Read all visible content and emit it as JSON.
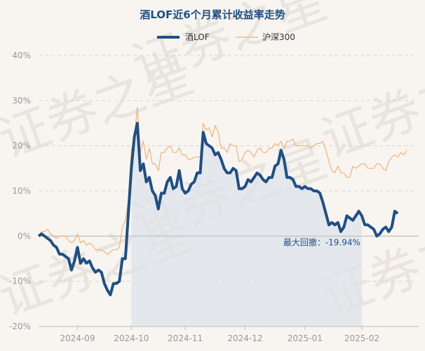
{
  "chart_data": {
    "type": "line",
    "title": "酒LOF近6个月累计收益率走势",
    "legend_position": "top",
    "watermark": "证券之星",
    "colors": {
      "lof": "#1f4f86",
      "hs300": "#f0b27a",
      "drawdown_fill": "#dde3ea"
    },
    "y_ticks": [
      "40%",
      "30%",
      "20%",
      "10%",
      "0%",
      "-10%",
      "-20%"
    ],
    "y_tick_values": [
      40,
      30,
      20,
      10,
      0,
      -10,
      -20
    ],
    "ylim": [
      -20,
      40
    ],
    "x_ticks": [
      "2024-09",
      "2024-10",
      "2024-11",
      "2024-12",
      "2025-01",
      "2025-02"
    ],
    "xlim": [
      0,
      127
    ],
    "x_tick_positions": [
      13,
      31,
      49,
      69,
      89,
      108
    ],
    "drawdown_range": [
      31,
      108
    ],
    "annotation": {
      "text": "最大回撤：-19.94%",
      "x": 108,
      "y": 0
    },
    "series": [
      {
        "name": "酒LOF",
        "values": [
          0,
          0.5,
          0,
          -0.5,
          -1,
          -2,
          -2.5,
          -4,
          -4,
          -4.5,
          -5,
          -7.5,
          -5.5,
          -2.5,
          -6,
          -5,
          -6,
          -5.5,
          -7,
          -8,
          -7.5,
          -8,
          -10.5,
          -12,
          -13,
          -10.5,
          -10.5,
          -10,
          -5,
          -5,
          5,
          15,
          22,
          25,
          14.5,
          16,
          12,
          13,
          10,
          9,
          6,
          9.5,
          9.5,
          12,
          13,
          10.5,
          11,
          14.5,
          10.5,
          9.5,
          10,
          11.5,
          12,
          14,
          14,
          23,
          20.5,
          20,
          19.5,
          18,
          18.5,
          17,
          15,
          14,
          14,
          15,
          14.5,
          10.5,
          10.5,
          11,
          12.5,
          12,
          13,
          14,
          13.5,
          12.5,
          12,
          13,
          13,
          15.5,
          16,
          19,
          17,
          13,
          13,
          12.5,
          11,
          11,
          10.5,
          11,
          10.5,
          10.5,
          10,
          10,
          9.5,
          7.5,
          5,
          2.5,
          3,
          2.5,
          3,
          1,
          2,
          4.5,
          4,
          3.5,
          4.5,
          5.5,
          4.5,
          2.5,
          2.5,
          2,
          1.5,
          0,
          0.5,
          1.5,
          2,
          1,
          2,
          5.5,
          5
        ]
      },
      {
        "name": "沪深300",
        "values": [
          0,
          1,
          1,
          1.5,
          0.5,
          0,
          -0.5,
          0,
          0,
          0,
          -1,
          -1.5,
          -1,
          0.5,
          -1.5,
          -1,
          -2,
          -1.5,
          -2,
          -3,
          -3,
          -3,
          -3.5,
          -4,
          -3.5,
          -3,
          -3,
          -2.5,
          2,
          3.5,
          8,
          19,
          22,
          28.5,
          18.5,
          21,
          17,
          19.5,
          16,
          16,
          14.5,
          18.5,
          18.5,
          19.5,
          20,
          18.5,
          18.5,
          19.5,
          18,
          18,
          17,
          17,
          17.5,
          17.5,
          17.5,
          25,
          23.5,
          24,
          22,
          24.5,
          23,
          19.5,
          19.5,
          18.5,
          20.5,
          20,
          20,
          16.5,
          17,
          18.5,
          19,
          18.5,
          17.5,
          19,
          19.5,
          18.5,
          18.5,
          19.5,
          19.5,
          20.5,
          20,
          21,
          19.5,
          21,
          21,
          21.5,
          20,
          20,
          20,
          20,
          20,
          19.5,
          20,
          20.5,
          20.5,
          21,
          19,
          16.5,
          14.5,
          14,
          15.5,
          14,
          14,
          13,
          13,
          15.5,
          15,
          15.5,
          16,
          16,
          15,
          15,
          15,
          16,
          16,
          15,
          14.5,
          16.5,
          17.5,
          18,
          17.5,
          18.5,
          18,
          19
        ]
      }
    ]
  }
}
